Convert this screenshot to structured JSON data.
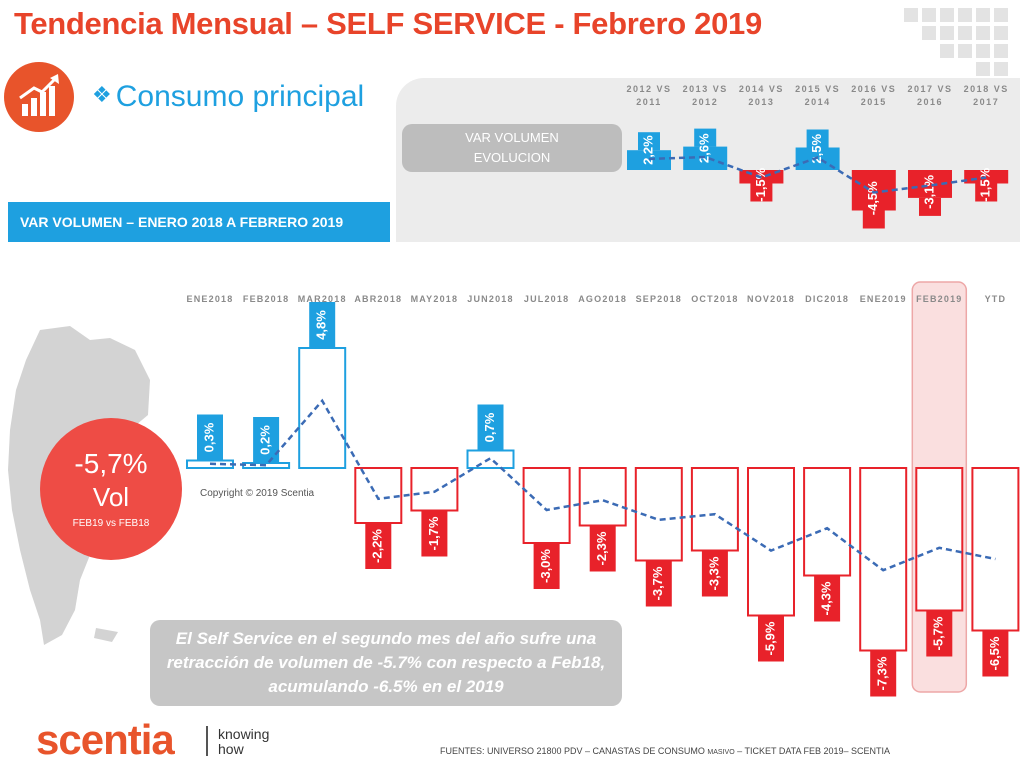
{
  "header": {
    "title": "Tendencia Mensual –  SELF SERVICE - Febrero 2019",
    "subtitle": "Consumo principal",
    "subtitle_bullet": "❖"
  },
  "colors": {
    "accent_orange": "#e8542b",
    "title_red": "#e8442a",
    "positive_blue": "#1ea0e0",
    "negative_red": "#e8222a",
    "trend_line": "#3b6bb5"
  },
  "top_panel": {
    "label": "VAR VOLUMEN\nEVOLUCION"
  },
  "monthly_label": "VAR VOLUMEN – ENERO 2018 A FEBRERO 2019",
  "kpi": {
    "value": "-5,7%",
    "unit": "Vol",
    "compare": "FEB19 vs FEB18"
  },
  "copyright": "Copyright © 2019 Scentia",
  "message": "El Self Service  en el segundo mes del año sufre una retracción de volumen de -5.7% con respecto a Feb18, acumulando -6.5% en el 2019",
  "brand": {
    "logo": "scentia",
    "tagline": "knowing\nhow"
  },
  "footer": {
    "main": "FUENTES: UNIVERSO 21800 PDV – CANASTAS DE CONSUMO ",
    "small": "MASIVO",
    "tail": " – TICKET DATA FEB 2019– SCENTIA"
  },
  "chart_data": [
    {
      "type": "bar",
      "categories": [
        "2012 VS 2011",
        "2013 VS 2012",
        "2014 VS 2013",
        "2015 VS 2014",
        "2016 VS 2015",
        "2017 VS 2016",
        "2018 VS 2017"
      ],
      "values": [
        2.2,
        2.6,
        -1.5,
        2.5,
        -4.5,
        -3.1,
        -1.5
      ],
      "data_labels": [
        "2,2%",
        "2,6%",
        "-1,5%",
        "2,5%",
        "-4,5%",
        "-3,1%",
        "-1,5%"
      ],
      "trend_line": true,
      "title": "VAR VOLUMEN EVOLUCION"
    },
    {
      "type": "bar",
      "categories": [
        "ENE2018",
        "FEB2018",
        "MAR2018",
        "ABR2018",
        "MAY2018",
        "JUN2018",
        "JUL2018",
        "AGO2018",
        "SEP2018",
        "OCT2018",
        "NOV2018",
        "DIC2018",
        "ENE2019",
        "FEB2019",
        "YTD"
      ],
      "values": [
        0.3,
        0.2,
        4.8,
        -2.2,
        -1.7,
        0.7,
        -3.0,
        -2.3,
        -3.7,
        -3.3,
        -5.9,
        -4.3,
        -7.3,
        -5.7,
        -6.5
      ],
      "data_labels": [
        "0,3%",
        "0,2%",
        "4,8%",
        "-2,2%",
        "-1,7%",
        "0,7%",
        "-3,0%",
        "-2,3%",
        "-3,7%",
        "-3,3%",
        "-5,9%",
        "-4,3%",
        "-7,3%",
        "-5,7%",
        "-6,5%"
      ],
      "highlighted_category": "FEB2019",
      "trend_line": true,
      "title": "VAR VOLUMEN – ENERO 2018 A FEBRERO 2019"
    }
  ]
}
